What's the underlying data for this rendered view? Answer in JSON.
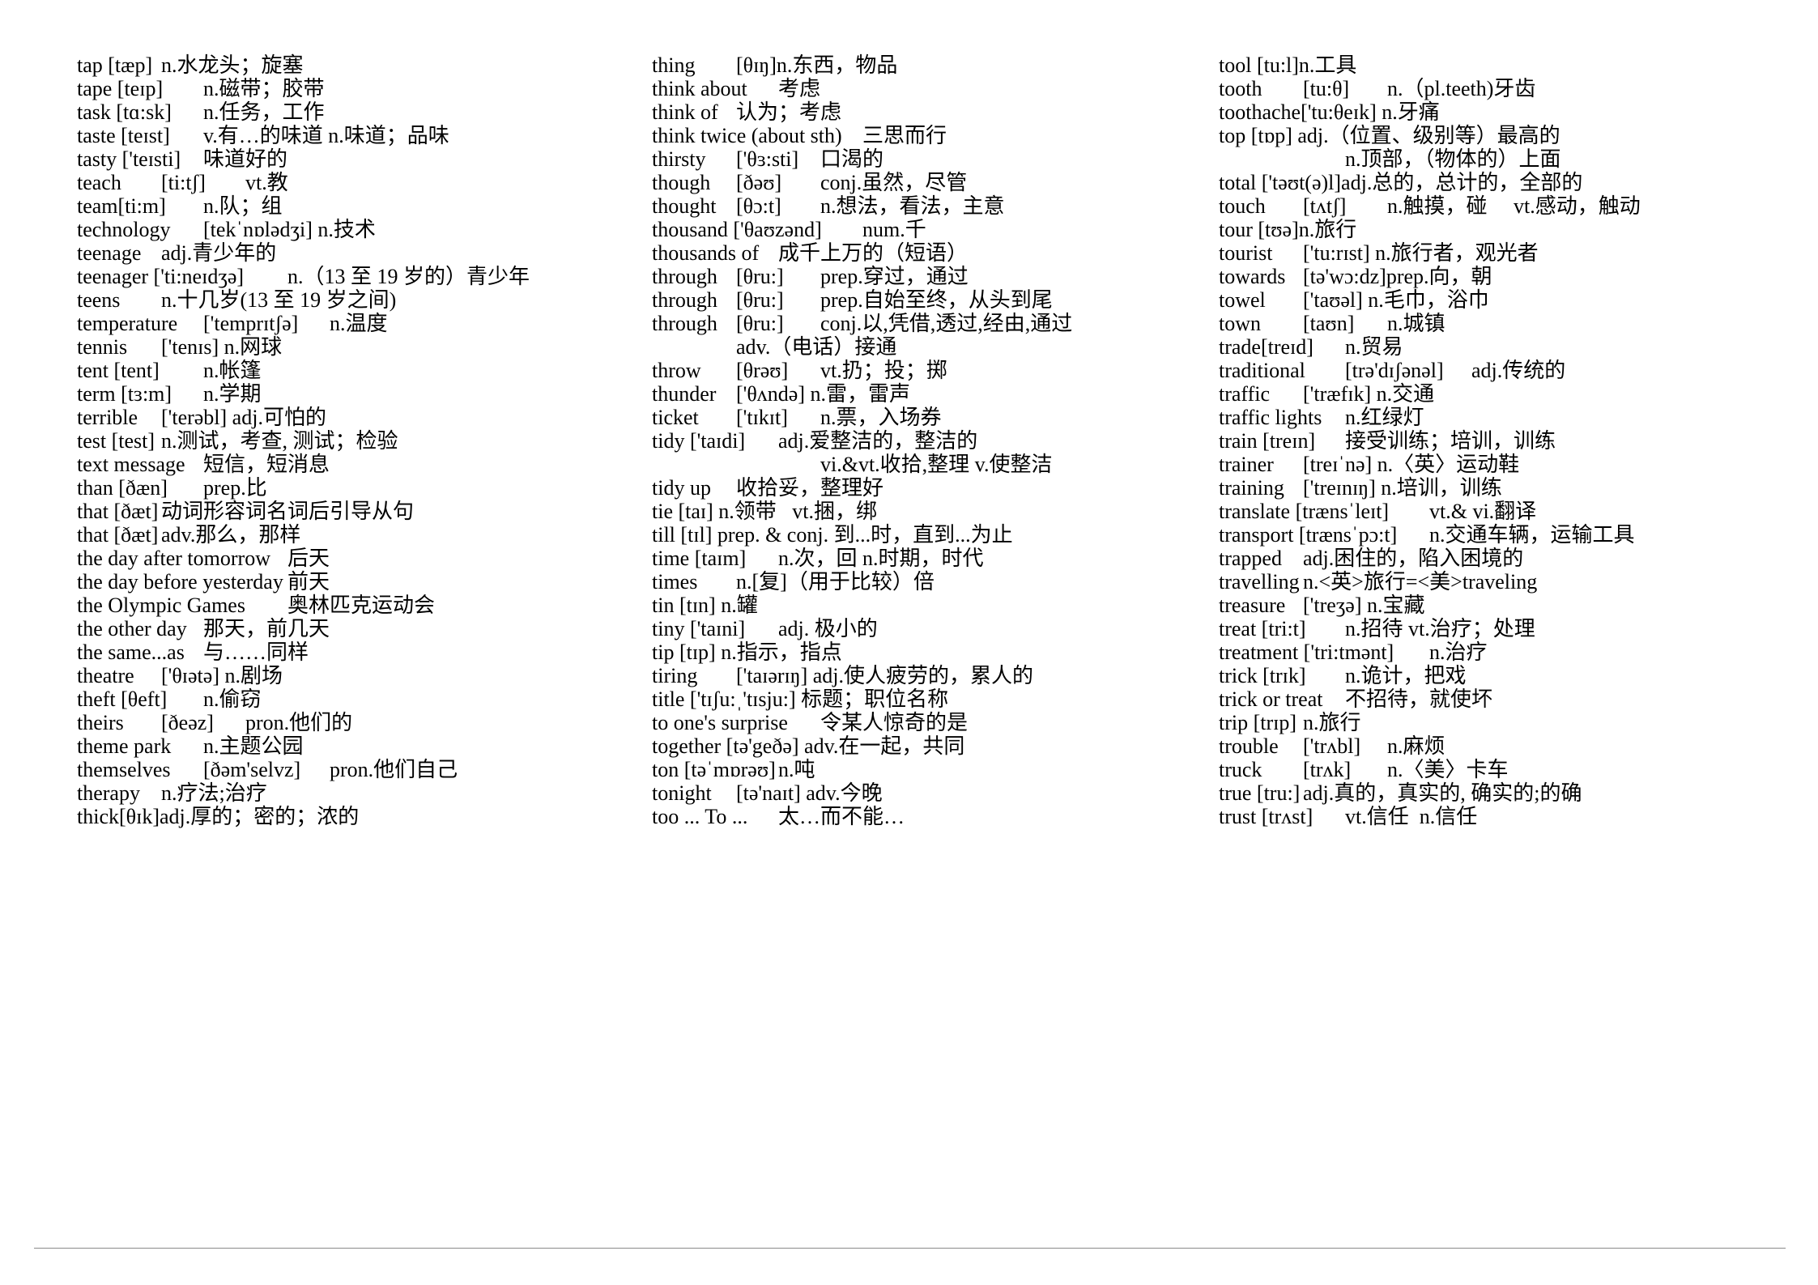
{
  "document": {
    "columns": [
      {
        "lines": [
          "tap [tæp]\tn.水龙头；旋塞",
          "tape [teɪp]\tn.磁带；胶带",
          "task [tɑ:sk]\tn.任务，工作",
          "taste [teɪst]\tv.有…的味道 n.味道；品味",
          "tasty ['teɪsti]\t味道好的",
          "teach\t[ti:tʃ]\tvt.教",
          "team[ti:m]\tn.队；组",
          "technology\t[tekˈnɒlədʒi] n.技术",
          "teenage\tadj.青少年的",
          "teenager ['ti:neɪdʒə]\tn.（13 至 19 岁的）青少年",
          "teens\tn.十几岁(13 至 19 岁之间)",
          "temperature\t['temprɪtʃə]\tn.温度",
          "tennis\t['tenɪs] n.网球",
          "tent [tent]\tn.帐篷",
          "term [tɜ:m]\tn.学期",
          "terrible\t['terəbl] adj.可怕的",
          "test [test]\tn.测试，考查, 测试；检验",
          "text message\t短信，短消息",
          "than [ðæn]\tprep.比",
          "that [ðæt]\t动词形容词名词后引导从句",
          "that [ðæt]\tadv.那么，那样",
          "the day after tomorrow\t后天",
          "the day before yesterday\t前天",
          "the Olympic Games\t奥林匹克运动会",
          "the other day\t那天，前几天",
          "the same...as\t与……同样",
          "theatre\t['θɪətə] n.剧场",
          "theft [θeft]\tn.偷窃",
          "theirs\t[ðeəz]\tpron.他们的",
          "theme park\tn.主题公园",
          "themselves\t[ðəm'selvz]\tpron.他们自己",
          "therapy\tn.疗法;治疗",
          "thick[θɪk]adj.厚的；密的；浓的"
        ]
      },
      {
        "lines": [
          "thing\t[θɪŋ]n.东西，物品",
          "think about\t考虑",
          "think of\t认为；考虑",
          "think twice (about sth)\t三思而行",
          "thirsty\t['θɜ:sti]\t口渴的",
          "though\t[ðəʊ]\tconj.虽然，尽管",
          "thought\t[θɔ:t]\tn.想法，看法，主意",
          "thousand ['θaʊzənd]\tnum.千",
          "thousands of\t成千上万的（短语）",
          "through\t[θru:]\tprep.穿过，通过",
          "through\t[θru:]\tprep.自始至终，从头到尾",
          "through\t[θru:]\tconj.以,凭借,透过,经由,通过",
          "\t\tadv.（电话）接通",
          "throw\t[θrəʊ]\tvt.扔；投；掷",
          "thunder\t['θʌndə] n.雷，雷声",
          "ticket\t['tɪkɪt]\tn.票，入场券",
          "tidy ['taɪdi]\tadj.爱整洁的，整洁的",
          "\t\t\t\tvi.&vt.收拾,整理 v.使整洁",
          "tidy up\t收拾妥，整理好",
          "tie [taɪ] n.领带   vt.捆，绑",
          "till [tɪl] prep. & conj. 到...时，直到...为止",
          "time [taɪm]\tn.次，回 n.时期，时代",
          "times\tn.[复]（用于比较）倍",
          "tin [tɪn] n.罐",
          "tiny ['taɪni]\tadj. 极小的",
          "tip [tɪp] n.指示，指点",
          "tiring\t['taɪərɪŋ] adj.使人疲劳的，累人的",
          "title ['tɪʃu:ˌ'tɪsju:] 标题；职位名称",
          "to one's surprise\t令某人惊奇的是",
          "together [tə'geðə] adv.在一起，共同",
          "ton [təˈmɒrəʊ]\tn.吨",
          "tonight\t[tə'naɪt] adv.今晚",
          "too ... To ...\t太…而不能…"
        ]
      },
      {
        "lines": [
          "tool [tu:l]n.工具",
          "tooth\t[tu:θ]\tn.（pl.teeth)牙齿",
          "toothache['tu:θeɪk] n.牙痛",
          "top [tɒp] adj.（位置、级别等）最高的",
          "\t\t\tn.顶部，（物体的）上面",
          "total ['təʊt(ə)l]adj.总的，总计的，全部的",
          "touch\t[tʌtʃ]\tn.触摸，碰\tvt.感动，触动",
          "tour [tʊə]n.旅行",
          "tourist\t['tu:rɪst] n.旅行者，观光者",
          "towards\t[tə'wɔ:dz]prep.向，朝",
          "towel\t['taʊəl] n.毛巾，浴巾",
          "town\t[taʊn]\tn.城镇",
          "trade[treɪd]\tn.贸易",
          "traditional\t[trə'dɪʃənəl]\tadj.传统的",
          "traffic\t['træfɪk] n.交通",
          "traffic lights\tn.红绿灯",
          "train [treɪn]\t接受训练；培训，训练",
          "trainer\t[treɪˈnə] n.〈英〉运动鞋",
          "training\t['treɪnɪŋ] n.培训，训练",
          "translate [trænsˈleɪt]\tvt.& vi.翻译",
          "transport [trænsˈpɔ:t]\tn.交通车辆，运输工具",
          "trapped\tadj.困住的，陷入困境的",
          "travelling\tn.<英>旅行=<美>traveling",
          "treasure\t['treʒə] n.宝藏",
          "treat [tri:t]\tn.招待 vt.治疗；处理",
          "treatment ['tri:tmənt]\tn.治疗",
          "trick [trɪk]\tn.诡计，把戏",
          "trick or treat\t不招待，就使坏",
          "trip [trɪp]\tn.旅行",
          "trouble\t['trʌbl]\tn.麻烦",
          "truck\t[trʌk]\tn.〈美〉卡车",
          "true [tru:]\tadj.真的，真实的, 确实的;的确",
          "trust [trʌst]\tvt.信任  n.信任"
        ]
      }
    ]
  }
}
